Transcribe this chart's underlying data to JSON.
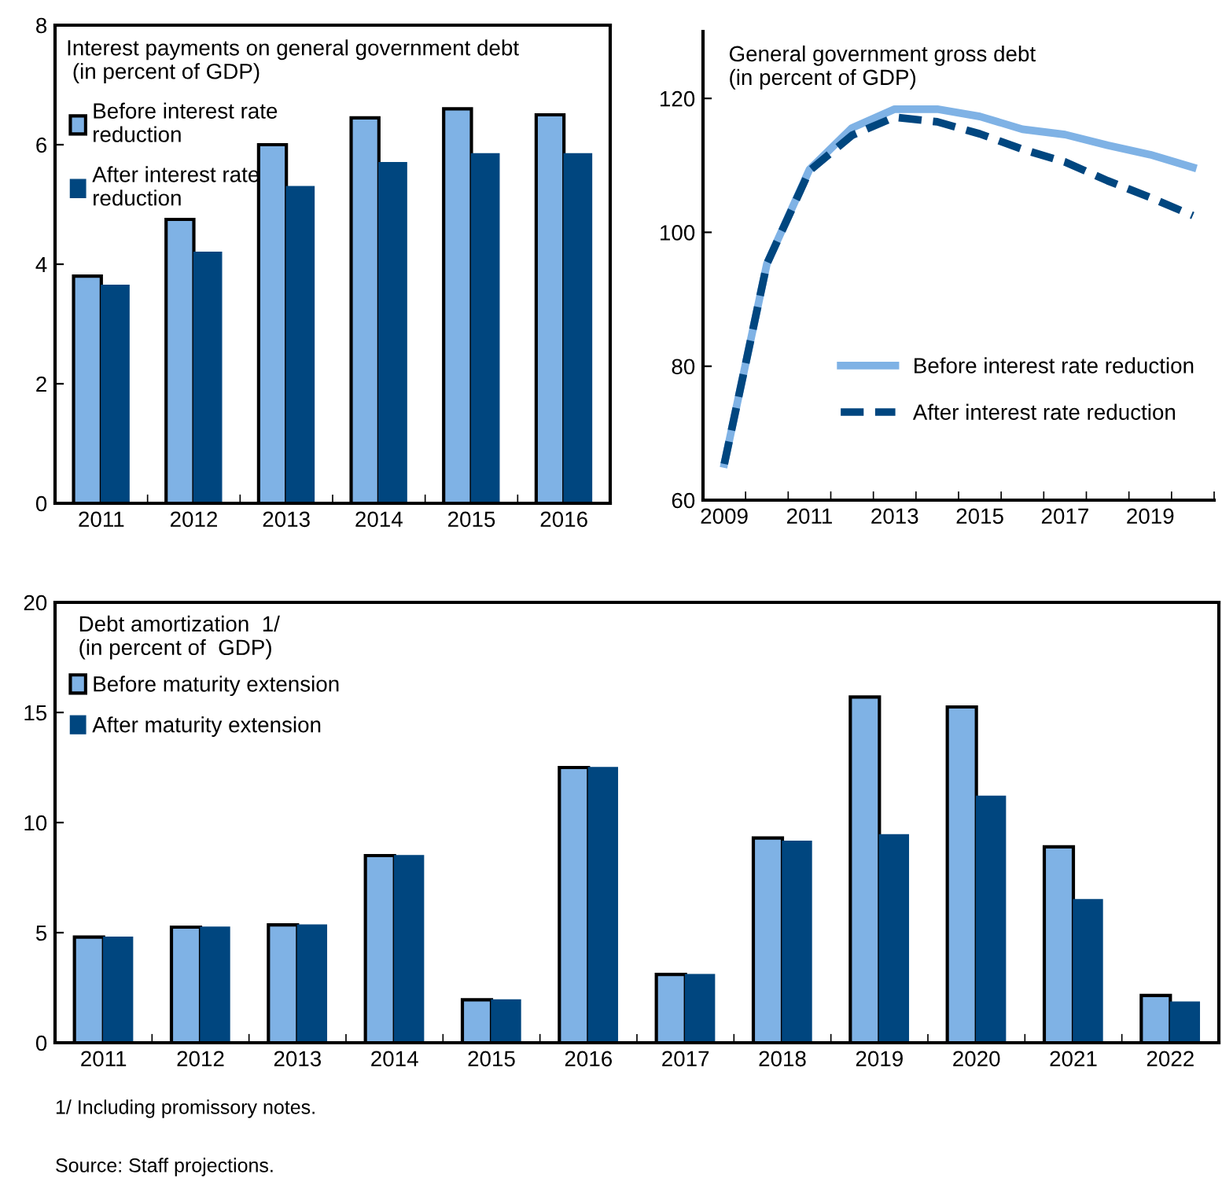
{
  "chart_data": [
    {
      "type": "bar",
      "title": "Interest payments on general government debt\n (in percent of GDP)",
      "categories": [
        "2011",
        "2012",
        "2013",
        "2014",
        "2015",
        "2016"
      ],
      "series": [
        {
          "name": "Before interest rate\nreduction",
          "color": "#7fb2e5",
          "values": [
            3.8,
            4.75,
            6.0,
            6.45,
            6.6,
            6.5
          ]
        },
        {
          "name": "After interest rate\nreduction",
          "color": "#00467f",
          "values": [
            3.65,
            4.2,
            5.3,
            5.7,
            5.85,
            5.85
          ]
        }
      ],
      "ylim": [
        0,
        8
      ],
      "yticks": [
        0,
        2,
        4,
        6,
        8
      ],
      "grid": false,
      "legend": "top left"
    },
    {
      "type": "line",
      "title": "General government gross debt\n(in percent of GDP)",
      "categories": [
        "2009",
        null,
        "2011",
        null,
        "2013",
        null,
        "2015",
        null,
        "2017",
        null,
        "2019",
        null
      ],
      "series": [
        {
          "name": "Before interest rate reduction",
          "color": "#7fb2e5",
          "line_style": "solid",
          "values": [
            65.4,
            95.3,
            109.4,
            115.6,
            118.4,
            118.4,
            117.3,
            115.4,
            114.6,
            113.0,
            111.6,
            109.7
          ]
        },
        {
          "name": "After interest rate reduction",
          "color": "#00467f",
          "line_style": "dashed",
          "values": [
            65.4,
            95.3,
            109.2,
            114.5,
            117.2,
            116.5,
            114.7,
            112.4,
            110.5,
            107.7,
            105.2,
            102.5
          ]
        }
      ],
      "ylim": [
        60,
        130
      ],
      "yticks": [
        60,
        80,
        100,
        120
      ],
      "grid": false,
      "legend": "bottom right",
      "marker": "none"
    },
    {
      "type": "bar",
      "title": "Debt amortization  1/\n(in percent of  GDP)",
      "categories": [
        "2011",
        "2012",
        "2013",
        "2014",
        "2015",
        "2016",
        "2017",
        "2018",
        "2019",
        "2020",
        "2021",
        "2022"
      ],
      "series": [
        {
          "name": "Before maturity extension",
          "color": "#7fb2e5",
          "values": [
            4.8,
            5.25,
            5.35,
            8.5,
            1.95,
            12.5,
            3.1,
            9.3,
            15.7,
            15.25,
            8.9,
            2.15
          ]
        },
        {
          "name": "After maturity extension",
          "color": "#00467f",
          "values": [
            4.8,
            5.25,
            5.35,
            8.5,
            1.95,
            12.5,
            3.1,
            9.15,
            9.45,
            11.2,
            6.5,
            1.85
          ]
        }
      ],
      "ylim": [
        0,
        20
      ],
      "yticks": [
        0,
        5,
        10,
        15,
        20
      ],
      "grid": false,
      "legend": "top left",
      "annotations": [
        "1/ Including promissory notes.",
        "Source: Staff projections."
      ]
    }
  ]
}
